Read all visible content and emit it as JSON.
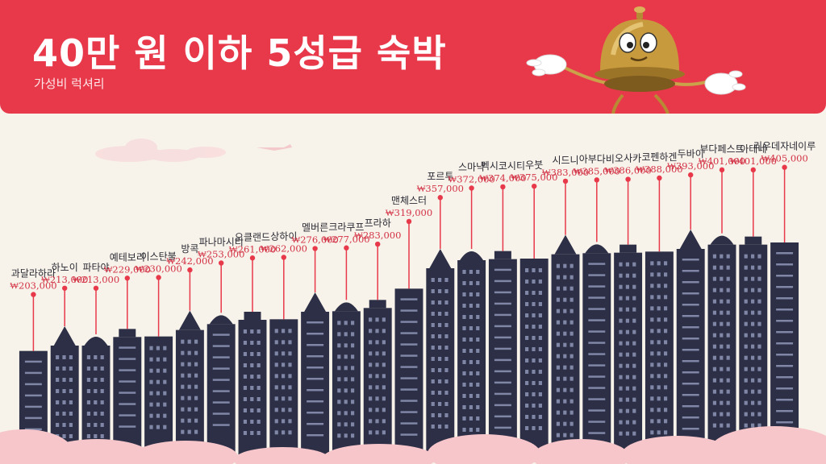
{
  "header": {
    "title": "40만 원 이하 5성급 숙박",
    "subtitle": "가성비 럭셔리"
  },
  "colors": {
    "header_bg": "#e8394b",
    "background": "#f7f2ea",
    "building": "#2c2f45",
    "window": "#7f86a6",
    "pin": "#e8394b",
    "price_text": "#d33245",
    "cloud": "#f6c6cb"
  },
  "chart_data": {
    "type": "bar",
    "title": "40만 원 이하 5성급 숙박",
    "subtitle": "가성비 럭셔리",
    "categories": [
      "과달라하라",
      "하노이",
      "파타야",
      "예테보리",
      "이스탄불",
      "방콕",
      "파나마시티",
      "오클랜드",
      "상하이",
      "멜버른",
      "크라쿠프",
      "프라하",
      "맨체스터",
      "포르투",
      "스마냑",
      "멕시코시티",
      "우붓",
      "시드니",
      "아부다비",
      "오사카",
      "코펜하겐",
      "두바이",
      "부다페스트",
      "아테네",
      "리우데자네이루"
    ],
    "price_labels": [
      "₩203,000",
      "₩213,000",
      "₩213,000",
      "₩229,000",
      "₩230,000",
      "₩242,000",
      "₩253,000",
      "₩261,000",
      "₩262,000",
      "₩276,000",
      "₩277,000",
      "₩283,000",
      "₩319,000",
      "₩357,000",
      "₩372,000",
      "₩374,000",
      "₩375,000",
      "₩383,000",
      "₩385,000",
      "₩386,000",
      "₩388,000",
      "₩393,000",
      "₩401,000",
      "₩401,000",
      "₩405,000"
    ],
    "values": [
      203000,
      213000,
      213000,
      229000,
      230000,
      242000,
      253000,
      261000,
      262000,
      276000,
      277000,
      283000,
      319000,
      357000,
      372000,
      374000,
      375000,
      383000,
      385000,
      386000,
      388000,
      393000,
      401000,
      401000,
      405000
    ],
    "unit": "₩",
    "ylim": [
      150000,
      420000
    ],
    "grid": false,
    "legend": "none"
  }
}
